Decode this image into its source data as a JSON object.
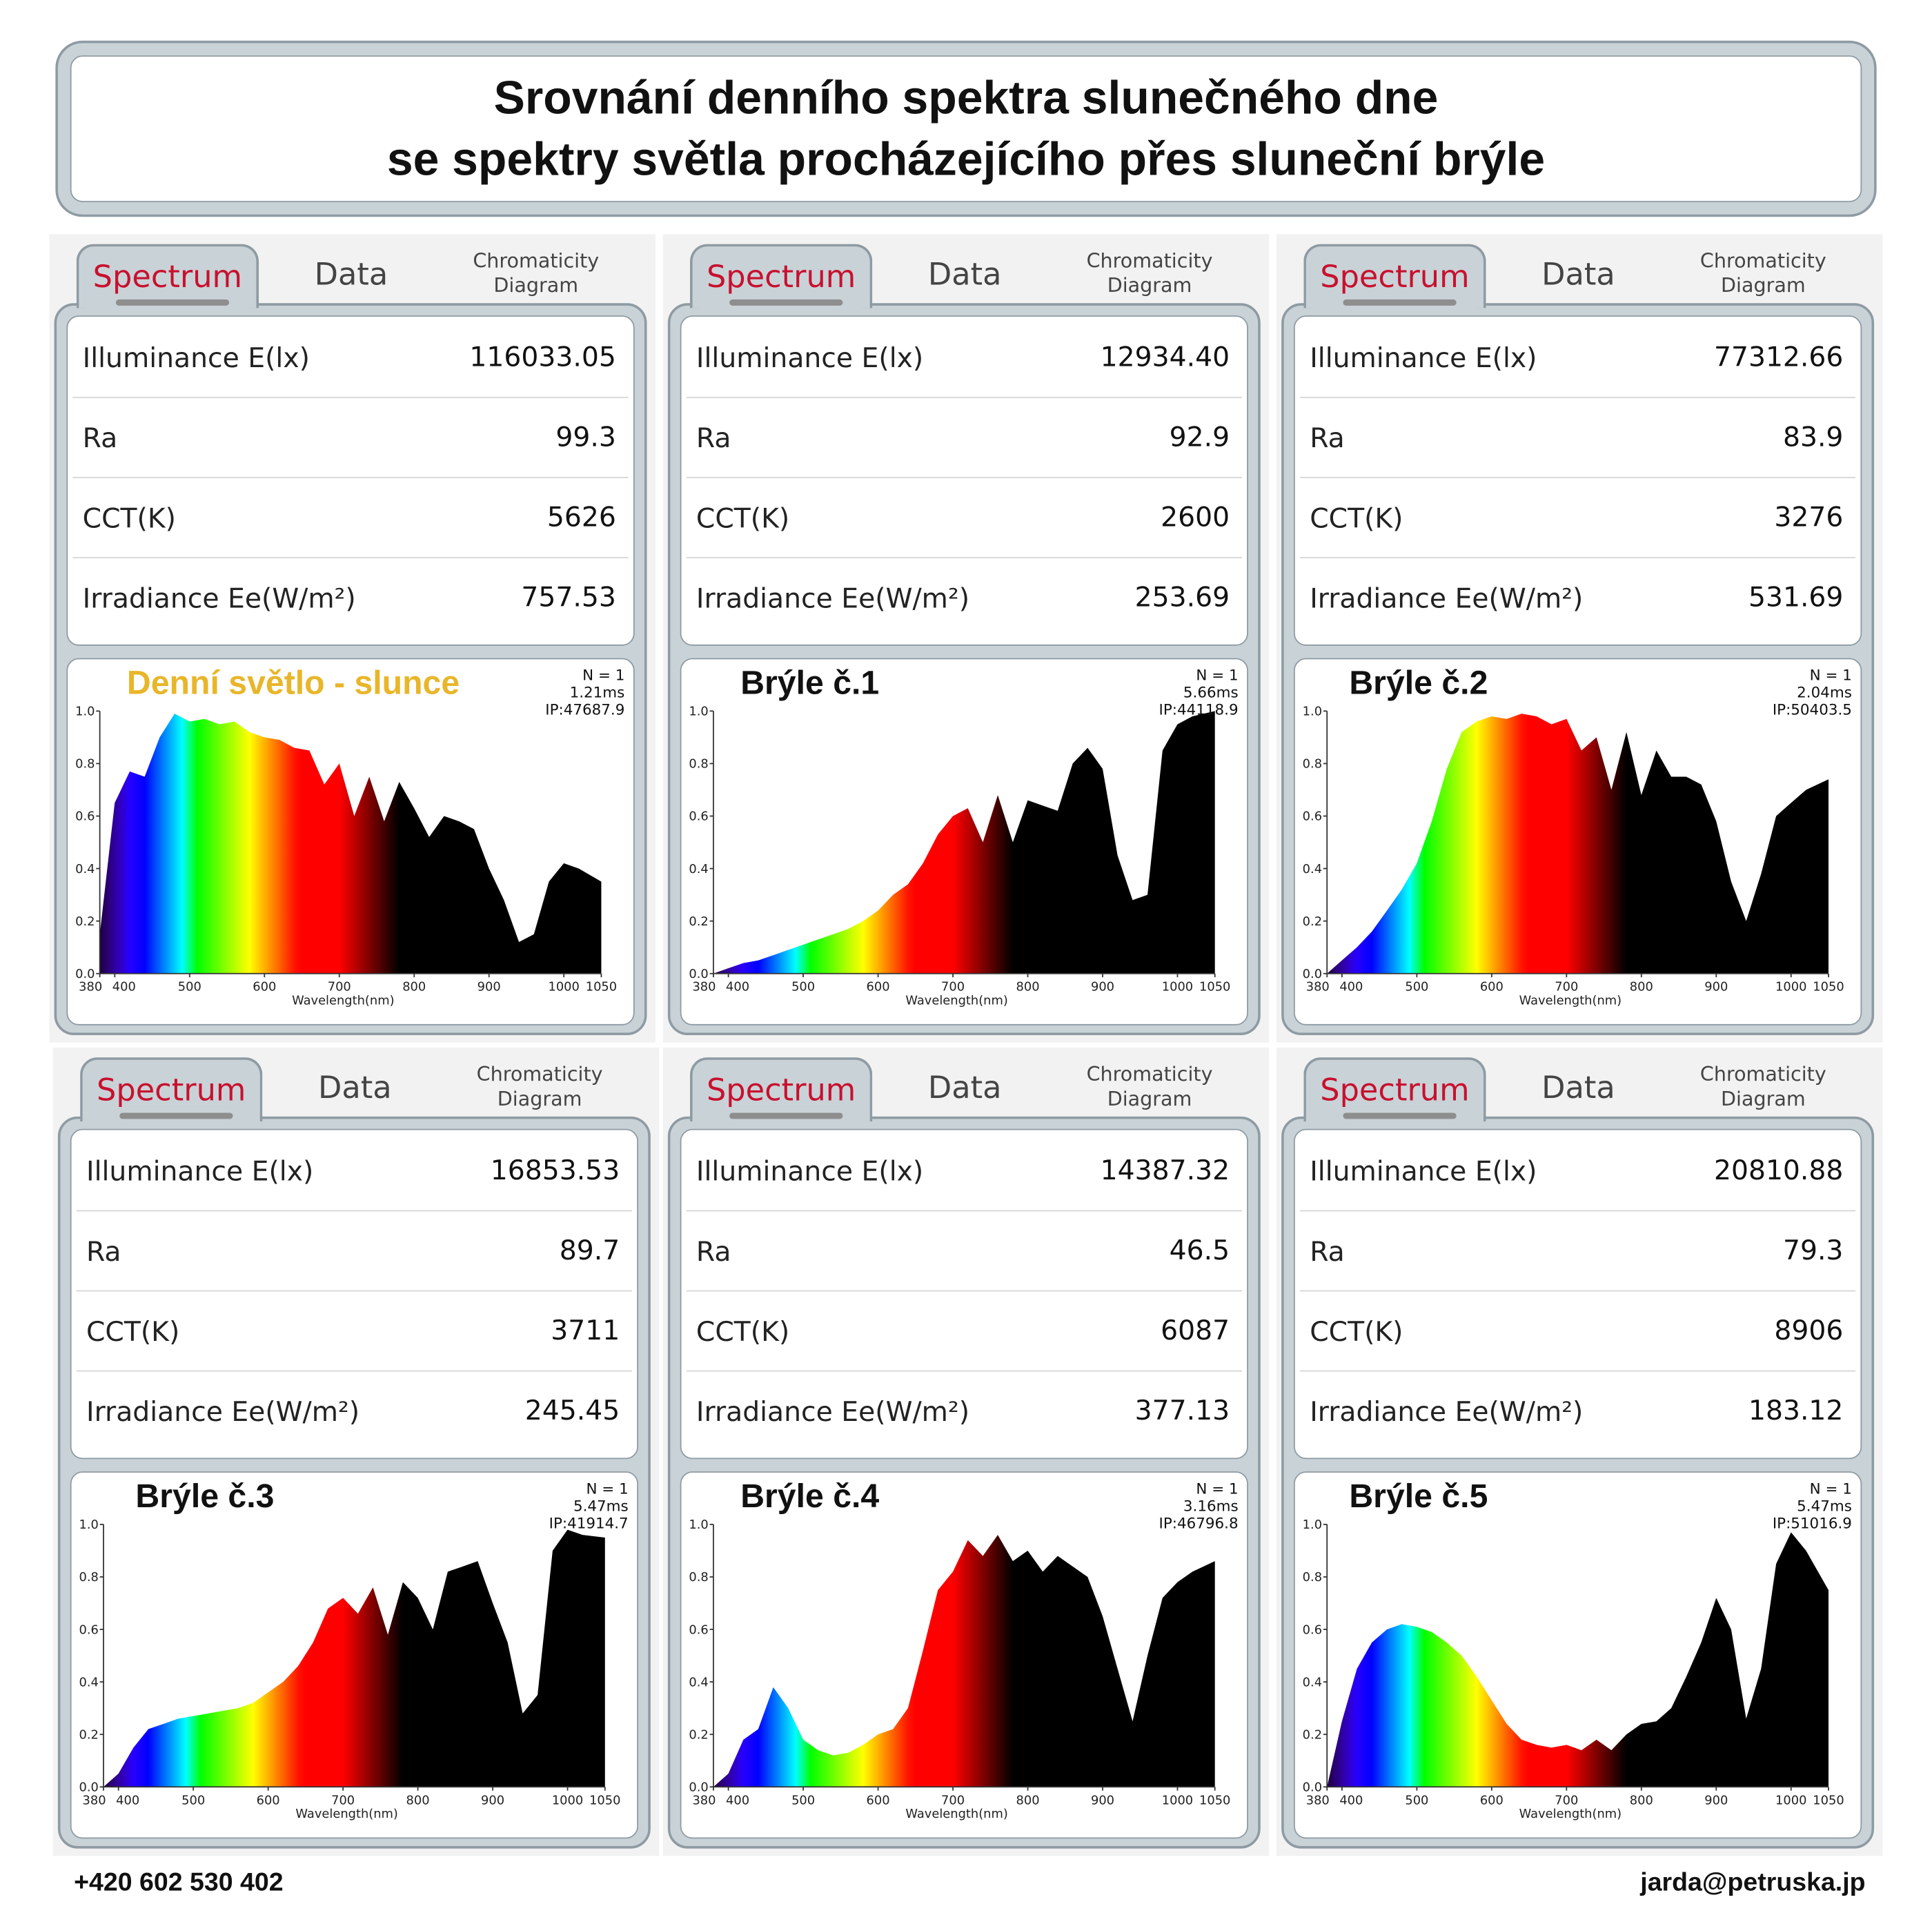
{
  "title": {
    "line1": "Srovnání denního spektra slunečného dne",
    "line2": "se spektry světla procházejícího přes sluneční brýle"
  },
  "tabs": {
    "spectrum": "Spectrum",
    "data": "Data",
    "chromaticity_line1": "Chromaticity",
    "chromaticity_line2": "Diagram"
  },
  "row_labels": {
    "illuminance": "Illuminance E(lx)",
    "ra": "Ra",
    "cct": "CCT(K)",
    "irradiance": "Irradiance Ee(W/m²)"
  },
  "panels": [
    {
      "label": "Denní světlo - slunce",
      "label_color": "#e8b62a",
      "illuminance": "116033.05",
      "ra": "99.3",
      "cct": "5626",
      "irradiance": "757.53",
      "n": "N = 1",
      "time": "1.21ms",
      "ip": "IP:47687.9"
    },
    {
      "label": "Brýle č.1",
      "label_color": "#111111",
      "illuminance": "12934.40",
      "ra": "92.9",
      "cct": "2600",
      "irradiance": "253.69",
      "n": "N = 1",
      "time": "5.66ms",
      "ip": "IP:44118.9"
    },
    {
      "label": "Brýle č.2",
      "label_color": "#111111",
      "illuminance": "77312.66",
      "ra": "83.9",
      "cct": "3276",
      "irradiance": "531.69",
      "n": "N = 1",
      "time": "2.04ms",
      "ip": "IP:50403.5"
    },
    {
      "label": "Brýle č.3",
      "label_color": "#111111",
      "illuminance": "16853.53",
      "ra": "89.7",
      "cct": "3711",
      "irradiance": "245.45",
      "n": "N = 1",
      "time": "5.47ms",
      "ip": "IP:41914.7"
    },
    {
      "label": "Brýle č.4",
      "label_color": "#111111",
      "illuminance": "14387.32",
      "ra": "46.5",
      "cct": "6087",
      "irradiance": "377.13",
      "n": "N = 1",
      "time": "3.16ms",
      "ip": "IP:46796.8"
    },
    {
      "label": "Brýle č.5",
      "label_color": "#111111",
      "illuminance": "20810.88",
      "ra": "79.3",
      "cct": "8906",
      "irradiance": "183.12",
      "n": "N = 1",
      "time": "5.47ms",
      "ip": "IP:51016.9"
    }
  ],
  "footer": {
    "phone": "+420 602 530 402",
    "email": "jarda@petruska.jp"
  },
  "chart_data": [
    {
      "type": "area",
      "title": "Denní světlo - slunce",
      "xlabel": "Wavelength(nm)",
      "ylabel": "",
      "xlim": [
        380,
        1050
      ],
      "ylim": [
        0,
        1.0
      ],
      "x_ticks": [
        "380",
        "400",
        "500",
        "600",
        "700",
        "800",
        "900",
        "1000",
        "1050"
      ],
      "y_ticks": [
        "0.0",
        "0.2",
        "0.4",
        "0.6",
        "0.8",
        "1.0"
      ],
      "x": [
        380,
        400,
        420,
        440,
        460,
        480,
        500,
        520,
        540,
        560,
        580,
        600,
        620,
        640,
        660,
        680,
        700,
        720,
        740,
        760,
        780,
        800,
        820,
        840,
        860,
        880,
        900,
        920,
        940,
        960,
        980,
        1000,
        1020,
        1050
      ],
      "values": [
        0.15,
        0.65,
        0.77,
        0.75,
        0.9,
        0.99,
        0.96,
        0.97,
        0.95,
        0.96,
        0.92,
        0.9,
        0.89,
        0.86,
        0.85,
        0.72,
        0.8,
        0.6,
        0.75,
        0.58,
        0.73,
        0.63,
        0.52,
        0.6,
        0.58,
        0.55,
        0.4,
        0.28,
        0.12,
        0.15,
        0.35,
        0.42,
        0.4,
        0.35
      ]
    },
    {
      "type": "area",
      "title": "Brýle č.1",
      "xlabel": "Wavelength(nm)",
      "ylabel": "",
      "xlim": [
        380,
        1050
      ],
      "ylim": [
        0,
        1.0
      ],
      "x_ticks": [
        "380",
        "400",
        "500",
        "600",
        "700",
        "800",
        "900",
        "1000",
        "1050"
      ],
      "y_ticks": [
        "0.0",
        "0.2",
        "0.4",
        "0.6",
        "0.8",
        "1.0"
      ],
      "x": [
        380,
        400,
        420,
        440,
        460,
        480,
        500,
        520,
        540,
        560,
        580,
        600,
        620,
        640,
        660,
        680,
        700,
        720,
        740,
        760,
        780,
        800,
        820,
        840,
        860,
        880,
        900,
        920,
        940,
        960,
        980,
        1000,
        1020,
        1050
      ],
      "values": [
        0.0,
        0.02,
        0.04,
        0.05,
        0.07,
        0.09,
        0.11,
        0.13,
        0.15,
        0.17,
        0.2,
        0.24,
        0.3,
        0.34,
        0.42,
        0.53,
        0.6,
        0.63,
        0.5,
        0.68,
        0.5,
        0.66,
        0.64,
        0.62,
        0.8,
        0.86,
        0.78,
        0.45,
        0.28,
        0.3,
        0.85,
        0.95,
        0.98,
        1.0
      ]
    },
    {
      "type": "area",
      "title": "Brýle č.2",
      "xlabel": "Wavelength(nm)",
      "ylabel": "",
      "xlim": [
        380,
        1050
      ],
      "ylim": [
        0,
        1.0
      ],
      "x_ticks": [
        "380",
        "400",
        "500",
        "600",
        "700",
        "800",
        "900",
        "1000",
        "1050"
      ],
      "y_ticks": [
        "0.0",
        "0.2",
        "0.4",
        "0.6",
        "0.8",
        "1.0"
      ],
      "x": [
        380,
        400,
        420,
        440,
        460,
        480,
        500,
        520,
        540,
        560,
        580,
        600,
        620,
        640,
        660,
        680,
        700,
        720,
        740,
        760,
        780,
        800,
        820,
        840,
        860,
        880,
        900,
        920,
        940,
        960,
        980,
        1000,
        1020,
        1050
      ],
      "values": [
        0.0,
        0.05,
        0.1,
        0.16,
        0.24,
        0.32,
        0.42,
        0.58,
        0.78,
        0.92,
        0.96,
        0.98,
        0.97,
        0.99,
        0.98,
        0.95,
        0.97,
        0.85,
        0.9,
        0.7,
        0.92,
        0.68,
        0.85,
        0.75,
        0.75,
        0.72,
        0.58,
        0.35,
        0.2,
        0.38,
        0.6,
        0.65,
        0.7,
        0.74
      ]
    },
    {
      "type": "area",
      "title": "Brýle č.3",
      "xlabel": "Wavelength(nm)",
      "ylabel": "",
      "xlim": [
        380,
        1050
      ],
      "ylim": [
        0,
        1.0
      ],
      "x_ticks": [
        "380",
        "400",
        "500",
        "600",
        "700",
        "800",
        "900",
        "1000",
        "1050"
      ],
      "y_ticks": [
        "0.0",
        "0.2",
        "0.4",
        "0.6",
        "0.8",
        "1.0"
      ],
      "x": [
        380,
        400,
        420,
        440,
        460,
        480,
        500,
        520,
        540,
        560,
        580,
        600,
        620,
        640,
        660,
        680,
        700,
        720,
        740,
        760,
        780,
        800,
        820,
        840,
        860,
        880,
        900,
        920,
        940,
        960,
        980,
        1000,
        1020,
        1050
      ],
      "values": [
        0.0,
        0.05,
        0.15,
        0.22,
        0.24,
        0.26,
        0.27,
        0.28,
        0.29,
        0.3,
        0.32,
        0.36,
        0.4,
        0.46,
        0.55,
        0.68,
        0.72,
        0.66,
        0.76,
        0.58,
        0.78,
        0.72,
        0.6,
        0.82,
        0.84,
        0.86,
        0.7,
        0.55,
        0.28,
        0.35,
        0.9,
        0.98,
        0.96,
        0.95
      ]
    },
    {
      "type": "area",
      "title": "Brýle č.4",
      "xlabel": "Wavelength(nm)",
      "ylabel": "",
      "xlim": [
        380,
        1050
      ],
      "ylim": [
        0,
        1.0
      ],
      "x_ticks": [
        "380",
        "400",
        "500",
        "600",
        "700",
        "800",
        "900",
        "1000",
        "1050"
      ],
      "y_ticks": [
        "0.0",
        "0.2",
        "0.4",
        "0.6",
        "0.8",
        "1.0"
      ],
      "x": [
        380,
        400,
        420,
        440,
        460,
        480,
        500,
        520,
        540,
        560,
        580,
        600,
        620,
        640,
        660,
        680,
        700,
        720,
        740,
        760,
        780,
        800,
        820,
        840,
        860,
        880,
        900,
        920,
        940,
        960,
        980,
        1000,
        1020,
        1050
      ],
      "values": [
        0.0,
        0.05,
        0.18,
        0.22,
        0.38,
        0.3,
        0.18,
        0.14,
        0.12,
        0.13,
        0.16,
        0.2,
        0.22,
        0.3,
        0.52,
        0.75,
        0.82,
        0.94,
        0.88,
        0.96,
        0.86,
        0.9,
        0.82,
        0.88,
        0.84,
        0.8,
        0.65,
        0.45,
        0.25,
        0.5,
        0.72,
        0.78,
        0.82,
        0.86
      ]
    },
    {
      "type": "area",
      "title": "Brýle č.5",
      "xlabel": "Wavelength(nm)",
      "ylabel": "",
      "xlim": [
        380,
        1050
      ],
      "ylim": [
        0,
        1.0
      ],
      "x_ticks": [
        "380",
        "400",
        "500",
        "600",
        "700",
        "800",
        "900",
        "1000",
        "1050"
      ],
      "y_ticks": [
        "0.0",
        "0.2",
        "0.4",
        "0.6",
        "0.8",
        "1.0"
      ],
      "x": [
        380,
        400,
        420,
        440,
        460,
        480,
        500,
        520,
        540,
        560,
        580,
        600,
        620,
        640,
        660,
        680,
        700,
        720,
        740,
        760,
        780,
        800,
        820,
        840,
        860,
        880,
        900,
        920,
        940,
        960,
        980,
        1000,
        1020,
        1050
      ],
      "values": [
        0.0,
        0.25,
        0.45,
        0.55,
        0.6,
        0.62,
        0.61,
        0.59,
        0.55,
        0.5,
        0.42,
        0.33,
        0.24,
        0.18,
        0.16,
        0.15,
        0.16,
        0.14,
        0.18,
        0.14,
        0.2,
        0.24,
        0.25,
        0.3,
        0.42,
        0.55,
        0.72,
        0.6,
        0.26,
        0.45,
        0.85,
        0.97,
        0.9,
        0.75
      ]
    }
  ]
}
